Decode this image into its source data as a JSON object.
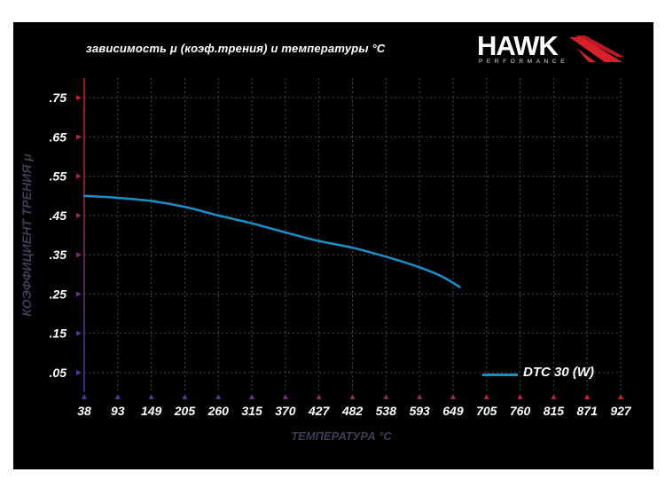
{
  "title": "зависимость μ (коэф.трения) и температуры °C",
  "logo": {
    "word": "HAWK",
    "sub": "PERFORMANCE",
    "wing_color": "#d8202a"
  },
  "colors": {
    "background": "#000000",
    "grid": "#4a4a4a",
    "line": "#1a8fc9",
    "axis_gradient_start": "#3b3f9c",
    "axis_gradient_end": "#c8202c"
  },
  "chart_data": {
    "type": "line",
    "title": "зависимость μ (коэф.трения) и температуры °C",
    "xlabel": "ТЕМПЕРАТУРА °C",
    "ylabel": "КОЭФФИЦИЕНТ ТРЕНИЯ μ",
    "categories": [
      "38",
      "93",
      "149",
      "205",
      "260",
      "315",
      "370",
      "427",
      "482",
      "538",
      "593",
      "649",
      "705",
      "760",
      "815",
      "871",
      "927"
    ],
    "ytick_labels": [
      ".05",
      ".15",
      ".25",
      ".35",
      ".45",
      ".55",
      ".65",
      ".75"
    ],
    "yticks": [
      0.05,
      0.15,
      0.25,
      0.35,
      0.45,
      0.55,
      0.65,
      0.75
    ],
    "ylim": [
      0.0,
      0.8
    ],
    "xlim": [
      38,
      927
    ],
    "grid": true,
    "legend_position": "bottom-right",
    "series": [
      {
        "name": "DTC 30 (W)",
        "color": "#1a8fc9",
        "x": [
          38,
          93,
          149,
          205,
          260,
          315,
          370,
          427,
          482,
          538,
          593,
          630,
          660
        ],
        "y": [
          0.5,
          0.495,
          0.487,
          0.472,
          0.45,
          0.43,
          0.407,
          0.385,
          0.368,
          0.345,
          0.318,
          0.295,
          0.268
        ]
      }
    ]
  }
}
